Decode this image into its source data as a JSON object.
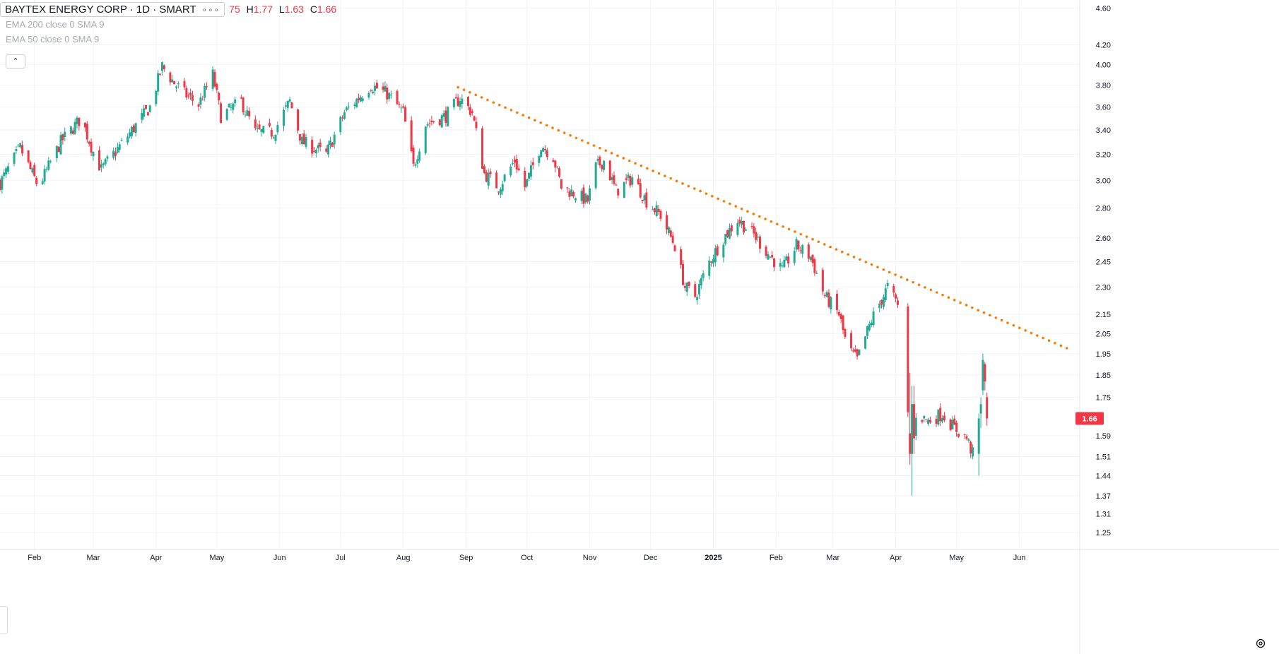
{
  "header": {
    "symbol_title": "BAYTEX ENERGY CORP · 1D · SMART",
    "ohlc": [
      {
        "label": "",
        "value": "75"
      },
      {
        "label": "H",
        "value": "1.77"
      },
      {
        "label": "L",
        "value": "1.63"
      },
      {
        "label": "C",
        "value": "1.66"
      }
    ],
    "indicators": [
      "EMA 200 close 0 SMA 9",
      "EMA 50 close 0 SMA 9"
    ]
  },
  "colors": {
    "up": "#22ab94",
    "down": "#f23645",
    "trendline": "#f57c00",
    "grid": "#f0f3fa",
    "axis_text": "#131722",
    "price_badge_bg": "#f23645"
  },
  "chart_data": {
    "type": "candlestick",
    "y_scale": "log",
    "ylim": [
      1.22,
      4.63
    ],
    "y_ticks": [
      "4.60",
      "4.20",
      "4.00",
      "3.80",
      "3.60",
      "3.40",
      "3.20",
      "3.00",
      "2.80",
      "2.60",
      "2.45",
      "2.30",
      "2.15",
      "2.05",
      "1.95",
      "1.85",
      "1.75",
      "1.66",
      "1.59",
      "1.51",
      "1.44",
      "1.37",
      "1.31",
      "1.25"
    ],
    "x_ticks": [
      "Feb",
      "Mar",
      "Apr",
      "May",
      "Jun",
      "Jul",
      "Aug",
      "Sep",
      "Oct",
      "Nov",
      "Dec",
      "2025",
      "Feb",
      "Mar",
      "Apr",
      "May",
      "Jun"
    ],
    "last_price": "1.66",
    "anchors": [
      [
        "2024-01-15",
        2.98
      ],
      [
        "2024-01-25",
        3.25
      ],
      [
        "2024-02-03",
        2.95
      ],
      [
        "2024-02-14",
        3.3
      ],
      [
        "2024-02-24",
        3.5
      ],
      [
        "2024-03-01",
        3.22
      ],
      [
        "2024-03-05",
        3.08
      ],
      [
        "2024-03-18",
        3.35
      ],
      [
        "2024-03-29",
        3.6
      ],
      [
        "2024-04-04",
        3.98
      ],
      [
        "2024-04-10",
        3.82
      ],
      [
        "2024-04-15",
        3.72
      ],
      [
        "2024-04-22",
        3.62
      ],
      [
        "2024-04-29",
        3.9
      ],
      [
        "2024-05-03",
        3.52
      ],
      [
        "2024-05-13",
        3.65
      ],
      [
        "2024-05-20",
        3.38
      ],
      [
        "2024-05-29",
        3.38
      ],
      [
        "2024-06-06",
        3.65
      ],
      [
        "2024-06-12",
        3.3
      ],
      [
        "2024-06-24",
        3.2
      ],
      [
        "2024-07-03",
        3.55
      ],
      [
        "2024-07-16",
        3.8
      ],
      [
        "2024-07-24",
        3.72
      ],
      [
        "2024-08-01",
        3.55
      ],
      [
        "2024-08-06",
        3.1
      ],
      [
        "2024-08-12",
        3.45
      ],
      [
        "2024-08-22",
        3.52
      ],
      [
        "2024-08-29",
        3.68
      ],
      [
        "2024-09-04",
        3.55
      ],
      [
        "2024-09-10",
        3.05
      ],
      [
        "2024-09-17",
        2.95
      ],
      [
        "2024-09-25",
        3.15
      ],
      [
        "2024-09-30",
        2.95
      ],
      [
        "2024-10-08",
        3.28
      ],
      [
        "2024-10-14",
        3.18
      ],
      [
        "2024-10-18",
        2.95
      ],
      [
        "2024-10-25",
        2.9
      ],
      [
        "2024-10-31",
        2.85
      ],
      [
        "2024-11-04",
        3.1
      ],
      [
        "2024-11-08",
        3.15
      ],
      [
        "2024-11-14",
        2.92
      ],
      [
        "2024-11-22",
        3.02
      ],
      [
        "2024-11-29",
        2.85
      ],
      [
        "2024-12-06",
        2.75
      ],
      [
        "2024-12-13",
        2.55
      ],
      [
        "2024-12-18",
        2.3
      ],
      [
        "2024-12-23",
        2.25
      ],
      [
        "2024-12-30",
        2.45
      ],
      [
        "2025-01-06",
        2.6
      ],
      [
        "2025-01-13",
        2.72
      ],
      [
        "2025-01-21",
        2.62
      ],
      [
        "2025-01-28",
        2.5
      ],
      [
        "2025-02-04",
        2.4
      ],
      [
        "2025-02-11",
        2.55
      ],
      [
        "2025-02-18",
        2.48
      ],
      [
        "2025-02-25",
        2.25
      ],
      [
        "2025-03-04",
        2.15
      ],
      [
        "2025-03-08",
        1.98
      ],
      [
        "2025-03-13",
        1.92
      ],
      [
        "2025-03-20",
        2.12
      ],
      [
        "2025-03-28",
        2.3
      ],
      [
        "2025-04-02",
        2.2
      ],
      [
        "2025-04-04",
        1.98
      ],
      [
        "2025-04-07",
        1.68
      ],
      [
        "2025-04-09",
        1.52
      ],
      [
        "2025-04-11",
        1.68
      ],
      [
        "2025-04-17",
        1.65
      ],
      [
        "2025-04-24",
        1.68
      ],
      [
        "2025-04-30",
        1.62
      ],
      [
        "2025-05-06",
        1.58
      ],
      [
        "2025-05-09",
        1.52
      ],
      [
        "2025-05-13",
        1.7
      ],
      [
        "2025-05-14",
        1.88
      ],
      [
        "2025-05-15",
        1.85
      ],
      [
        "2025-05-16",
        1.66
      ]
    ],
    "overrides": [
      [
        "2025-04-08",
        1.6,
        1.86,
        1.48,
        1.52
      ],
      [
        "2025-04-09",
        1.52,
        1.8,
        1.37,
        1.72
      ],
      [
        "2025-04-10",
        1.72,
        1.8,
        1.52,
        1.58
      ],
      [
        "2025-05-12",
        1.52,
        1.68,
        1.44,
        1.66
      ],
      [
        "2025-05-13",
        1.68,
        1.75,
        1.62,
        1.72
      ],
      [
        "2025-05-14",
        1.78,
        1.95,
        1.76,
        1.92
      ],
      [
        "2025-05-15",
        1.9,
        1.91,
        1.78,
        1.82
      ],
      [
        "2025-05-16",
        1.75,
        1.77,
        1.63,
        1.66
      ]
    ],
    "gap_days": [
      "2025-04-03",
      "2025-04-04"
    ],
    "date_range": [
      "2024-01-15",
      "2025-06-28"
    ],
    "trendline": {
      "start": [
        "2024-08-28",
        3.78
      ],
      "end": [
        "2025-06-26",
        1.97
      ],
      "style": "dotted"
    }
  }
}
